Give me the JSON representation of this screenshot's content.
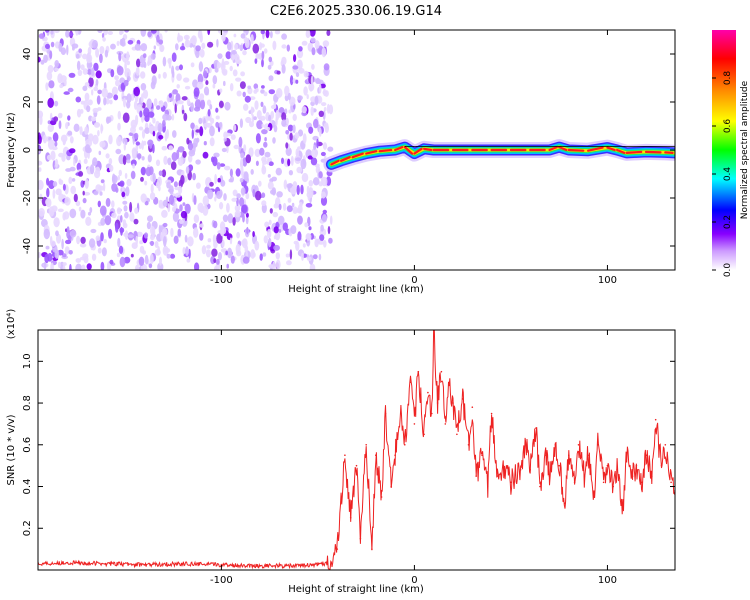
{
  "title": "C2E6.2025.330.06.19.G14",
  "colorbar": {
    "label": "Normalized spectral amplitude",
    "range": [
      0.0,
      1.0
    ],
    "ticks": [
      0.0,
      0.2,
      0.4,
      0.6,
      0.8
    ],
    "tick_labels": [
      "0.0",
      "0.2",
      "0.4",
      "0.6",
      "0.8"
    ],
    "stops": [
      "#ffffff",
      "#8800ff",
      "#0000ff",
      "#00ffff",
      "#00ff00",
      "#ffff00",
      "#ff8800",
      "#ff0000",
      "#ff00aa"
    ]
  },
  "chart_data": [
    {
      "type": "heatmap",
      "title": "C2E6.2025.330.06.19.G14",
      "xlabel": "Height of straight line (km)",
      "ylabel": "Frequency (Hz)",
      "xlim": [
        -195,
        135
      ],
      "ylim": [
        -50,
        50
      ],
      "xticks": [
        -100,
        0,
        100
      ],
      "xtick_labels": [
        "-100",
        "0",
        "100"
      ],
      "yticks": [
        -40,
        -20,
        0,
        20,
        40
      ],
      "ytick_labels": [
        "-40",
        "-20",
        "0",
        "20",
        "40"
      ],
      "noise_region_x": [
        -195,
        -43
      ],
      "signal_track": {
        "x": [
          -43,
          -38,
          -32,
          -25,
          -18,
          -10,
          -5,
          0,
          5,
          10,
          20,
          30,
          40,
          50,
          60,
          70,
          75,
          80,
          90,
          100,
          105,
          110,
          120,
          130,
          135
        ],
        "frequency": [
          -6,
          -4.5,
          -3,
          -1.5,
          -0.5,
          0,
          1.2,
          -1.5,
          0.5,
          0,
          0,
          0,
          0,
          0,
          0,
          0,
          1.2,
          0,
          -0.3,
          1,
          0,
          -1.2,
          -0.8,
          -1,
          -1.2
        ]
      },
      "colorbar_label": "Normalized spectral amplitude"
    },
    {
      "type": "line",
      "xlabel": "Height of straight line (km)",
      "ylabel": "SNR (10 * v/v)",
      "y_multiplier": "(x10⁴)",
      "xlim": [
        -195,
        135
      ],
      "ylim": [
        0,
        1.15
      ],
      "xticks": [
        -100,
        0,
        100
      ],
      "xtick_labels": [
        "-100",
        "0",
        "100"
      ],
      "yticks": [
        0.2,
        0.4,
        0.6,
        0.8,
        1.0
      ],
      "ytick_labels": [
        "0.2",
        "0.4",
        "0.6",
        "0.8",
        "1.0"
      ],
      "color": "#ee2222",
      "series": [
        {
          "name": "SNR",
          "x": [
            -195,
            -180,
            -160,
            -140,
            -120,
            -100,
            -80,
            -60,
            -45,
            -40,
            -36,
            -33,
            -30,
            -28,
            -25,
            -22,
            -20,
            -17,
            -15,
            -12,
            -10,
            -7,
            -5,
            -2,
            0,
            2,
            5,
            7,
            9,
            10,
            12,
            14,
            16,
            18,
            20,
            22,
            25,
            28,
            30,
            32,
            35,
            38,
            40,
            43,
            46,
            50,
            55,
            58,
            60,
            63,
            65,
            68,
            70,
            73,
            75,
            78,
            80,
            83,
            85,
            88,
            90,
            93,
            95,
            98,
            100,
            103,
            105,
            108,
            110,
            113,
            115,
            118,
            120,
            123,
            125,
            128,
            130,
            133,
            135
          ],
          "values": [
            0.03,
            0.035,
            0.03,
            0.025,
            0.03,
            0.025,
            0.02,
            0.02,
            0.03,
            0.1,
            0.55,
            0.25,
            0.5,
            0.15,
            0.6,
            0.1,
            0.55,
            0.35,
            0.75,
            0.4,
            0.55,
            0.75,
            0.6,
            0.9,
            0.7,
            0.95,
            0.65,
            0.85,
            0.75,
            1.15,
            0.8,
            0.95,
            0.7,
            0.9,
            0.8,
            0.65,
            0.82,
            0.6,
            0.78,
            0.45,
            0.55,
            0.4,
            0.75,
            0.45,
            0.5,
            0.42,
            0.48,
            0.6,
            0.48,
            0.68,
            0.4,
            0.55,
            0.45,
            0.6,
            0.5,
            0.32,
            0.55,
            0.42,
            0.6,
            0.45,
            0.55,
            0.35,
            0.6,
            0.42,
            0.5,
            0.4,
            0.48,
            0.3,
            0.55,
            0.45,
            0.5,
            0.42,
            0.55,
            0.45,
            0.72,
            0.5,
            0.6,
            0.42,
            0.38
          ]
        }
      ]
    }
  ]
}
